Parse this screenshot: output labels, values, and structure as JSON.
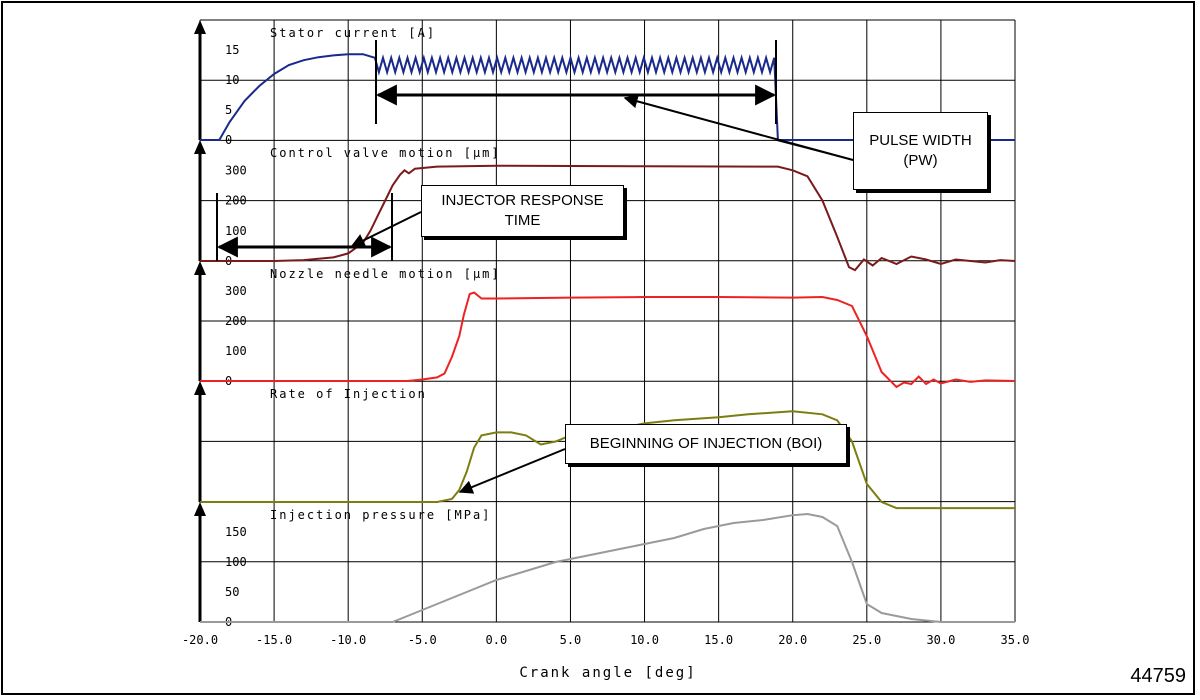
{
  "figure": {
    "number": "44759"
  },
  "callouts": {
    "pulse_width": [
      "PULSE WIDTH",
      "(PW)"
    ],
    "response_time": [
      "INJECTOR RESPONSE",
      "TIME"
    ],
    "boi": [
      "BEGINNING OF INJECTION (BOI)"
    ]
  },
  "chart_data": {
    "type": "line",
    "xlabel": "Crank angle [deg]",
    "xlim": [
      -20,
      35
    ],
    "xticks": [
      "-20.0",
      "-15.0",
      "-10.0",
      "-5.0",
      "0.0",
      "5.0",
      "10.0",
      "15.0",
      "20.0",
      "25.0",
      "30.0",
      "35.0"
    ],
    "colors": {
      "stator": "#1a2a8c",
      "control_valve": "#7a1a1a",
      "needle": "#ee2222",
      "rate": "#7d7d10",
      "pressure": "#9a9a9a"
    },
    "panels": [
      {
        "key": "stator",
        "title": "Stator current [A]",
        "ylim": [
          0,
          20
        ],
        "yticks": [
          {
            "v": 0,
            "label": "0"
          },
          {
            "v": 5,
            "label": "5"
          },
          {
            "v": 10,
            "label": "10"
          },
          {
            "v": 15,
            "label": "15"
          }
        ],
        "points": [
          [
            -20,
            0
          ],
          [
            -18.7,
            0
          ],
          [
            -18,
            3
          ],
          [
            -17,
            6.5
          ],
          [
            -16,
            9
          ],
          [
            -15,
            11
          ],
          [
            -14,
            12.5
          ],
          [
            -13,
            13.3
          ],
          [
            -12,
            13.8
          ],
          [
            -11,
            14.1
          ],
          [
            -10,
            14.3
          ],
          [
            -9,
            14.3
          ],
          [
            -8.2,
            14.2
          ],
          [
            -8.2,
            12.5
          ],
          [
            18.8,
            12.5
          ],
          [
            18.8,
            1
          ],
          [
            19,
            0
          ],
          [
            35,
            0
          ]
        ],
        "ripple": {
          "from": -8.2,
          "to": 18.8,
          "amplitude": 1.2,
          "period": 0.55
        }
      },
      {
        "key": "control_valve",
        "title": "Control valve motion [µm]",
        "ylim": [
          0,
          400
        ],
        "yticks": [
          {
            "v": 0,
            "label": "0"
          },
          {
            "v": 100,
            "label": "100"
          },
          {
            "v": 200,
            "label": "200"
          },
          {
            "v": 300,
            "label": "300"
          }
        ],
        "points": [
          [
            -20,
            0
          ],
          [
            -15,
            0
          ],
          [
            -13,
            3
          ],
          [
            -11,
            12
          ],
          [
            -10,
            25
          ],
          [
            -9,
            60
          ],
          [
            -8.5,
            100
          ],
          [
            -8,
            150
          ],
          [
            -7.5,
            200
          ],
          [
            -7,
            250
          ],
          [
            -6.5,
            285
          ],
          [
            -6.2,
            300
          ],
          [
            -5.9,
            290
          ],
          [
            -5.5,
            305
          ],
          [
            -4,
            312
          ],
          [
            0,
            315
          ],
          [
            10,
            313
          ],
          [
            19,
            312
          ],
          [
            20,
            300
          ],
          [
            21,
            280
          ],
          [
            22,
            200
          ],
          [
            23,
            80
          ],
          [
            23.8,
            -20
          ],
          [
            24.2,
            -30
          ],
          [
            24.8,
            5
          ],
          [
            25.4,
            -15
          ],
          [
            26,
            10
          ],
          [
            27,
            -10
          ],
          [
            28,
            15
          ],
          [
            29,
            5
          ],
          [
            30,
            -10
          ],
          [
            31,
            5
          ],
          [
            32,
            0
          ],
          [
            33,
            -5
          ],
          [
            34,
            3
          ],
          [
            35,
            0
          ]
        ]
      },
      {
        "key": "needle",
        "title": "Nozzle needle motion [µm]",
        "ylim": [
          0,
          400
        ],
        "yticks": [
          {
            "v": 0,
            "label": "0"
          },
          {
            "v": 100,
            "label": "100"
          },
          {
            "v": 200,
            "label": "200"
          },
          {
            "v": 300,
            "label": "300"
          }
        ],
        "points": [
          [
            -20,
            0
          ],
          [
            -6,
            0
          ],
          [
            -5,
            5
          ],
          [
            -4,
            12
          ],
          [
            -3.5,
            25
          ],
          [
            -3,
            80
          ],
          [
            -2.5,
            150
          ],
          [
            -2.2,
            220
          ],
          [
            -1.8,
            290
          ],
          [
            -1.5,
            295
          ],
          [
            -1,
            275
          ],
          [
            0,
            275
          ],
          [
            5,
            278
          ],
          [
            10,
            280
          ],
          [
            15,
            280
          ],
          [
            20,
            278
          ],
          [
            22,
            280
          ],
          [
            23,
            270
          ],
          [
            24,
            250
          ],
          [
            25,
            150
          ],
          [
            26,
            30
          ],
          [
            27,
            -20
          ],
          [
            27.5,
            -5
          ],
          [
            28,
            -10
          ],
          [
            28.5,
            15
          ],
          [
            29,
            -10
          ],
          [
            29.5,
            5
          ],
          [
            30,
            -8
          ],
          [
            31,
            5
          ],
          [
            32,
            -3
          ],
          [
            33,
            2
          ],
          [
            35,
            0
          ]
        ]
      },
      {
        "key": "rate",
        "title": "Rate of Injection",
        "ylim": [
          0,
          2
        ],
        "yticks": [],
        "points": [
          [
            -20,
            0
          ],
          [
            -4,
            0
          ],
          [
            -3,
            0.05
          ],
          [
            -2.5,
            0.2
          ],
          [
            -2,
            0.5
          ],
          [
            -1.5,
            0.9
          ],
          [
            -1,
            1.1
          ],
          [
            0,
            1.15
          ],
          [
            1,
            1.15
          ],
          [
            2,
            1.1
          ],
          [
            3,
            0.95
          ],
          [
            4,
            1.0
          ],
          [
            5,
            1.1
          ],
          [
            6,
            1.05
          ],
          [
            7,
            1.1
          ],
          [
            8,
            1.2
          ],
          [
            9,
            1.25
          ],
          [
            10,
            1.3
          ],
          [
            12,
            1.35
          ],
          [
            15,
            1.4
          ],
          [
            17,
            1.45
          ],
          [
            20,
            1.5
          ],
          [
            22,
            1.45
          ],
          [
            23,
            1.35
          ],
          [
            24,
            1.0
          ],
          [
            25,
            0.3
          ],
          [
            26,
            0
          ],
          [
            27,
            -0.1
          ],
          [
            35,
            -0.1
          ]
        ]
      },
      {
        "key": "pressure",
        "title": "Injection pressure [MPa]",
        "ylim": [
          0,
          200
        ],
        "yticks": [
          {
            "v": 0,
            "label": "0"
          },
          {
            "v": 50,
            "label": "50"
          },
          {
            "v": 100,
            "label": "100"
          },
          {
            "v": 150,
            "label": "150"
          }
        ],
        "points": [
          [
            -20,
            0
          ],
          [
            -7,
            0
          ],
          [
            -6,
            10
          ],
          [
            -5,
            20
          ],
          [
            -4,
            30
          ],
          [
            -2,
            50
          ],
          [
            0,
            70
          ],
          [
            2,
            85
          ],
          [
            4,
            100
          ],
          [
            6,
            110
          ],
          [
            8,
            120
          ],
          [
            10,
            130
          ],
          [
            12,
            140
          ],
          [
            14,
            155
          ],
          [
            16,
            165
          ],
          [
            18,
            170
          ],
          [
            20,
            178
          ],
          [
            21,
            180
          ],
          [
            22,
            175
          ],
          [
            23,
            160
          ],
          [
            24,
            100
          ],
          [
            25,
            30
          ],
          [
            26,
            15
          ],
          [
            27,
            10
          ],
          [
            28,
            5
          ],
          [
            30,
            0
          ],
          [
            35,
            0
          ]
        ]
      }
    ]
  }
}
